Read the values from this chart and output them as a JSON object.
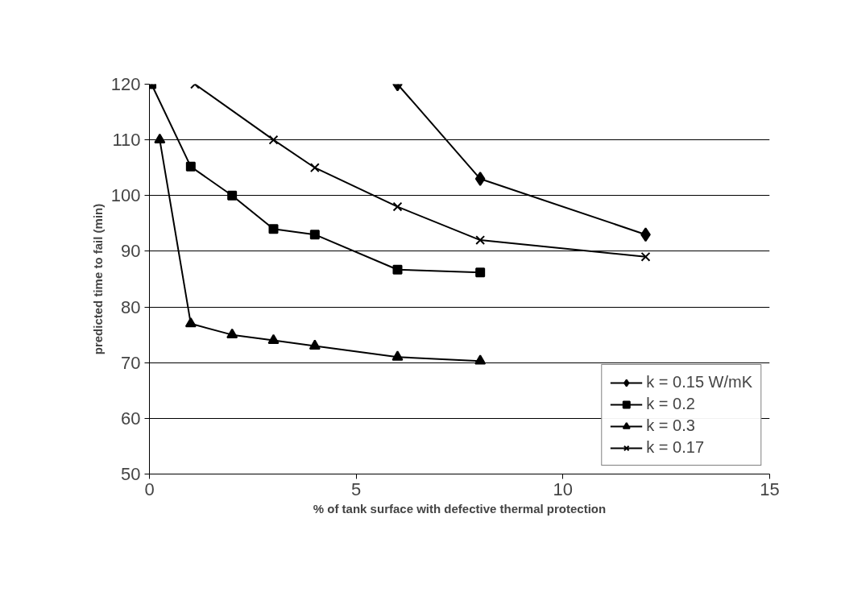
{
  "chart_data": {
    "type": "line",
    "xlabel": "% of tank surface with defective thermal protection",
    "ylabel": "predicted time to fail (min)",
    "xlim": [
      0,
      15
    ],
    "ylim": [
      50,
      120
    ],
    "xticks": [
      0,
      5,
      10,
      15
    ],
    "yticks": [
      50,
      60,
      70,
      80,
      90,
      100,
      110,
      120
    ],
    "grid": "y",
    "legend": "bottom right",
    "line_style": "solid",
    "series": [
      {
        "name": "k = 0.15 W/mK",
        "color": "#000000",
        "marker": "diamond",
        "x": [
          6,
          8,
          12
        ],
        "values": [
          120,
          103,
          93
        ]
      },
      {
        "name": "k = 0.2",
        "color": "#000000",
        "marker": "square",
        "x": [
          0.05,
          1,
          2,
          3,
          4,
          6,
          8
        ],
        "values": [
          120,
          105.2,
          100,
          94,
          93,
          86.7,
          86.2
        ]
      },
      {
        "name": "k = 0.3",
        "color": "#000000",
        "marker": "triangle",
        "x": [
          0.25,
          1,
          2,
          3,
          4,
          6,
          8
        ],
        "values": [
          110,
          77,
          75,
          74,
          73,
          71,
          70.3
        ]
      },
      {
        "name": "k = 0.17",
        "color": "#000000",
        "marker": "cross",
        "x": [
          1.1,
          3,
          4,
          6,
          8,
          12
        ],
        "values": [
          120,
          110,
          105,
          98,
          92,
          89
        ]
      }
    ]
  }
}
